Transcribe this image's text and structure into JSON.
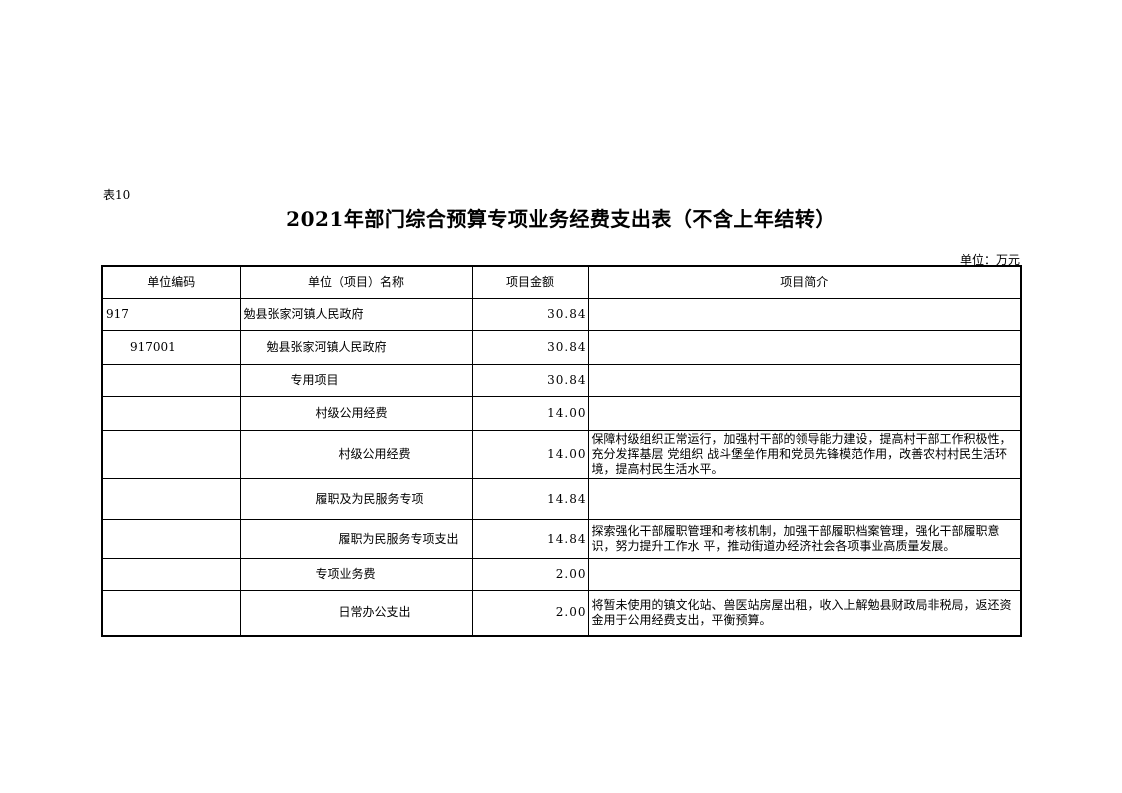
{
  "doc": {
    "table_no": "表10",
    "title": "2021年部门综合预算专项业务经费支出表（不含上年结转）",
    "unit": "单位：万元"
  },
  "table": {
    "headers": [
      "单位编码",
      "单位（项目）名称",
      "项目金额",
      "项目简介"
    ],
    "rows": [
      {
        "code": "917",
        "name": "勉县张家河镇人民政府",
        "level": 0,
        "amount": "30.84",
        "desc": ""
      },
      {
        "code": "917001",
        "name": "勉县张家河镇人民政府",
        "level": 1,
        "amount": "30.84",
        "desc": ""
      },
      {
        "code": "",
        "name": "专用项目",
        "level": 2,
        "amount": "30.84",
        "desc": ""
      },
      {
        "code": "",
        "name": "村级公用经费",
        "level": 3,
        "amount": "14.00",
        "desc": ""
      },
      {
        "code": "",
        "name": "村级公用经费",
        "level": 4,
        "amount": "14.00",
        "desc": "保障村级组织正常运行，加强村干部的领导能力建设，提高村干部工作积极性，充分发挥基层 党组织 战斗堡垒作用和党员先锋模范作用，改善农村村民生活环境，提高村民生活水平。"
      },
      {
        "code": "",
        "name": "履职及为民服务专项",
        "level": 3,
        "amount": "14.84",
        "desc": ""
      },
      {
        "code": "",
        "name": "履职为民服务专项支出",
        "level": 4,
        "amount": "14.84",
        "desc": "探索强化干部履职管理和考核机制，加强干部履职档案管理，强化干部履职意识，努力提升工作水 平，推动街道办经济社会各项事业高质量发展。"
      },
      {
        "code": "",
        "name": "专项业务费",
        "level": 3,
        "amount": "2.00",
        "desc": ""
      },
      {
        "code": "",
        "name": "日常办公支出",
        "level": 4,
        "amount": "2.00",
        "desc": "将暂未使用的镇文化站、兽医站房屋出租，收入上解勉县财政局非税局，返还资金用于公用经费支出，平衡预算。"
      }
    ]
  }
}
